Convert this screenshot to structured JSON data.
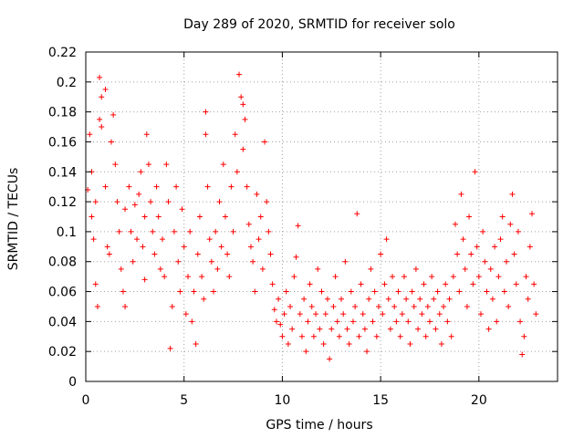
{
  "chart_data": {
    "type": "scatter",
    "title": "Day 289 of 2020, SRMTID for receiver solo",
    "xlabel": "GPS time / hours",
    "ylabel": "SRMTID / TECUs",
    "xlim": [
      0,
      24
    ],
    "ylim": [
      0,
      0.22
    ],
    "xticks": [
      0,
      5,
      10,
      15,
      20
    ],
    "xtick_labels": [
      "0",
      "5",
      "10",
      "15",
      "20"
    ],
    "yticks": [
      0,
      0.02,
      0.04,
      0.06,
      0.08,
      0.1,
      0.12,
      0.14,
      0.16,
      0.18,
      0.2,
      0.22
    ],
    "ytick_labels": [
      "0",
      "0.02",
      "0.04",
      "0.06",
      "0.08",
      "0.1",
      "0.12",
      "0.14",
      "0.16",
      "0.18",
      "0.2",
      "0.22"
    ],
    "grid": true,
    "marker": "+",
    "color": "#ff0000",
    "series": [
      {
        "name": "SRMTID",
        "points": [
          [
            0.1,
            0.128
          ],
          [
            0.2,
            0.165
          ],
          [
            0.3,
            0.14
          ],
          [
            0.3,
            0.11
          ],
          [
            0.4,
            0.095
          ],
          [
            0.5,
            0.065
          ],
          [
            0.5,
            0.12
          ],
          [
            0.6,
            0.05
          ],
          [
            0.7,
            0.203
          ],
          [
            0.7,
            0.175
          ],
          [
            0.8,
            0.19
          ],
          [
            0.8,
            0.17
          ],
          [
            1.0,
            0.195
          ],
          [
            1.0,
            0.13
          ],
          [
            1.1,
            0.09
          ],
          [
            1.2,
            0.085
          ],
          [
            1.3,
            0.16
          ],
          [
            1.4,
            0.178
          ],
          [
            1.5,
            0.145
          ],
          [
            1.6,
            0.12
          ],
          [
            1.7,
            0.1
          ],
          [
            1.8,
            0.075
          ],
          [
            1.9,
            0.06
          ],
          [
            2.0,
            0.05
          ],
          [
            2.0,
            0.115
          ],
          [
            2.2,
            0.13
          ],
          [
            2.3,
            0.1
          ],
          [
            2.4,
            0.08
          ],
          [
            2.5,
            0.118
          ],
          [
            2.6,
            0.095
          ],
          [
            2.7,
            0.125
          ],
          [
            2.8,
            0.14
          ],
          [
            2.9,
            0.09
          ],
          [
            3.0,
            0.11
          ],
          [
            3.0,
            0.068
          ],
          [
            3.1,
            0.165
          ],
          [
            3.2,
            0.145
          ],
          [
            3.3,
            0.12
          ],
          [
            3.4,
            0.1
          ],
          [
            3.5,
            0.085
          ],
          [
            3.6,
            0.13
          ],
          [
            3.7,
            0.11
          ],
          [
            3.8,
            0.075
          ],
          [
            3.9,
            0.095
          ],
          [
            4.0,
            0.07
          ],
          [
            4.1,
            0.145
          ],
          [
            4.2,
            0.12
          ],
          [
            4.3,
            0.022
          ],
          [
            4.4,
            0.05
          ],
          [
            4.5,
            0.1
          ],
          [
            4.6,
            0.13
          ],
          [
            4.7,
            0.08
          ],
          [
            4.8,
            0.06
          ],
          [
            4.9,
            0.115
          ],
          [
            5.0,
            0.09
          ],
          [
            5.1,
            0.045
          ],
          [
            5.2,
            0.07
          ],
          [
            5.3,
            0.1
          ],
          [
            5.4,
            0.04
          ],
          [
            5.5,
            0.06
          ],
          [
            5.6,
            0.025
          ],
          [
            5.7,
            0.085
          ],
          [
            5.8,
            0.11
          ],
          [
            5.9,
            0.07
          ],
          [
            6.0,
            0.055
          ],
          [
            6.1,
            0.165
          ],
          [
            6.1,
            0.18
          ],
          [
            6.2,
            0.13
          ],
          [
            6.3,
            0.095
          ],
          [
            6.4,
            0.08
          ],
          [
            6.5,
            0.06
          ],
          [
            6.6,
            0.1
          ],
          [
            6.7,
            0.075
          ],
          [
            6.8,
            0.12
          ],
          [
            6.9,
            0.09
          ],
          [
            7.0,
            0.145
          ],
          [
            7.1,
            0.11
          ],
          [
            7.2,
            0.085
          ],
          [
            7.3,
            0.07
          ],
          [
            7.4,
            0.13
          ],
          [
            7.5,
            0.1
          ],
          [
            7.6,
            0.165
          ],
          [
            7.7,
            0.14
          ],
          [
            7.8,
            0.205
          ],
          [
            7.9,
            0.19
          ],
          [
            8.0,
            0.185
          ],
          [
            8.0,
            0.155
          ],
          [
            8.1,
            0.175
          ],
          [
            8.2,
            0.13
          ],
          [
            8.3,
            0.105
          ],
          [
            8.4,
            0.09
          ],
          [
            8.5,
            0.08
          ],
          [
            8.6,
            0.06
          ],
          [
            8.7,
            0.125
          ],
          [
            8.8,
            0.095
          ],
          [
            8.9,
            0.11
          ],
          [
            9.0,
            0.075
          ],
          [
            9.1,
            0.16
          ],
          [
            9.2,
            0.12
          ],
          [
            9.3,
            0.1
          ],
          [
            9.4,
            0.085
          ],
          [
            9.5,
            0.065
          ],
          [
            9.6,
            0.048
          ],
          [
            9.7,
            0.04
          ],
          [
            9.8,
            0.055
          ],
          [
            9.9,
            0.038
          ],
          [
            10.0,
            0.03
          ],
          [
            10.1,
            0.045
          ],
          [
            10.2,
            0.06
          ],
          [
            10.3,
            0.025
          ],
          [
            10.4,
            0.05
          ],
          [
            10.5,
            0.035
          ],
          [
            10.6,
            0.07
          ],
          [
            10.7,
            0.083
          ],
          [
            10.8,
            0.104
          ],
          [
            10.9,
            0.045
          ],
          [
            11.0,
            0.03
          ],
          [
            11.1,
            0.055
          ],
          [
            11.2,
            0.02
          ],
          [
            11.3,
            0.04
          ],
          [
            11.4,
            0.065
          ],
          [
            11.5,
            0.05
          ],
          [
            11.6,
            0.03
          ],
          [
            11.7,
            0.045
          ],
          [
            11.8,
            0.075
          ],
          [
            11.9,
            0.035
          ],
          [
            12.0,
            0.06
          ],
          [
            12.1,
            0.025
          ],
          [
            12.2,
            0.045
          ],
          [
            12.3,
            0.055
          ],
          [
            12.4,
            0.015
          ],
          [
            12.5,
            0.035
          ],
          [
            12.6,
            0.05
          ],
          [
            12.7,
            0.07
          ],
          [
            12.8,
            0.04
          ],
          [
            12.9,
            0.03
          ],
          [
            13.0,
            0.055
          ],
          [
            13.1,
            0.045
          ],
          [
            13.2,
            0.08
          ],
          [
            13.3,
            0.035
          ],
          [
            13.4,
            0.025
          ],
          [
            13.5,
            0.06
          ],
          [
            13.6,
            0.04
          ],
          [
            13.7,
            0.05
          ],
          [
            13.8,
            0.112
          ],
          [
            13.9,
            0.03
          ],
          [
            14.0,
            0.065
          ],
          [
            14.1,
            0.045
          ],
          [
            14.2,
            0.035
          ],
          [
            14.3,
            0.02
          ],
          [
            14.4,
            0.055
          ],
          [
            14.5,
            0.075
          ],
          [
            14.6,
            0.04
          ],
          [
            14.7,
            0.06
          ],
          [
            14.8,
            0.03
          ],
          [
            14.9,
            0.05
          ],
          [
            15.0,
            0.085
          ],
          [
            15.1,
            0.045
          ],
          [
            15.2,
            0.065
          ],
          [
            15.3,
            0.095
          ],
          [
            15.4,
            0.055
          ],
          [
            15.5,
            0.035
          ],
          [
            15.6,
            0.07
          ],
          [
            15.7,
            0.05
          ],
          [
            15.8,
            0.04
          ],
          [
            15.9,
            0.06
          ],
          [
            16.0,
            0.03
          ],
          [
            16.1,
            0.045
          ],
          [
            16.2,
            0.07
          ],
          [
            16.3,
            0.055
          ],
          [
            16.4,
            0.04
          ],
          [
            16.5,
            0.025
          ],
          [
            16.6,
            0.06
          ],
          [
            16.7,
            0.05
          ],
          [
            16.8,
            0.075
          ],
          [
            16.9,
            0.035
          ],
          [
            17.0,
            0.055
          ],
          [
            17.1,
            0.045
          ],
          [
            17.2,
            0.065
          ],
          [
            17.3,
            0.03
          ],
          [
            17.4,
            0.05
          ],
          [
            17.5,
            0.04
          ],
          [
            17.6,
            0.07
          ],
          [
            17.7,
            0.055
          ],
          [
            17.8,
            0.035
          ],
          [
            17.9,
            0.06
          ],
          [
            18.0,
            0.045
          ],
          [
            18.1,
            0.025
          ],
          [
            18.2,
            0.05
          ],
          [
            18.3,
            0.065
          ],
          [
            18.4,
            0.04
          ],
          [
            18.5,
            0.055
          ],
          [
            18.6,
            0.03
          ],
          [
            18.7,
            0.07
          ],
          [
            18.8,
            0.105
          ],
          [
            18.9,
            0.085
          ],
          [
            19.0,
            0.06
          ],
          [
            19.1,
            0.125
          ],
          [
            19.2,
            0.095
          ],
          [
            19.3,
            0.075
          ],
          [
            19.4,
            0.05
          ],
          [
            19.5,
            0.11
          ],
          [
            19.6,
            0.085
          ],
          [
            19.7,
            0.065
          ],
          [
            19.8,
            0.14
          ],
          [
            19.9,
            0.09
          ],
          [
            20.0,
            0.07
          ],
          [
            20.1,
            0.045
          ],
          [
            20.2,
            0.1
          ],
          [
            20.3,
            0.08
          ],
          [
            20.4,
            0.06
          ],
          [
            20.5,
            0.035
          ],
          [
            20.6,
            0.075
          ],
          [
            20.7,
            0.055
          ],
          [
            20.8,
            0.09
          ],
          [
            20.9,
            0.04
          ],
          [
            21.0,
            0.07
          ],
          [
            21.1,
            0.095
          ],
          [
            21.2,
            0.11
          ],
          [
            21.3,
            0.06
          ],
          [
            21.4,
            0.08
          ],
          [
            21.5,
            0.05
          ],
          [
            21.6,
            0.105
          ],
          [
            21.7,
            0.125
          ],
          [
            21.8,
            0.085
          ],
          [
            21.9,
            0.065
          ],
          [
            22.0,
            0.1
          ],
          [
            22.1,
            0.04
          ],
          [
            22.2,
            0.018
          ],
          [
            22.3,
            0.03
          ],
          [
            22.4,
            0.07
          ],
          [
            22.5,
            0.055
          ],
          [
            22.6,
            0.09
          ],
          [
            22.7,
            0.112
          ],
          [
            22.8,
            0.065
          ],
          [
            22.9,
            0.045
          ]
        ]
      }
    ]
  }
}
